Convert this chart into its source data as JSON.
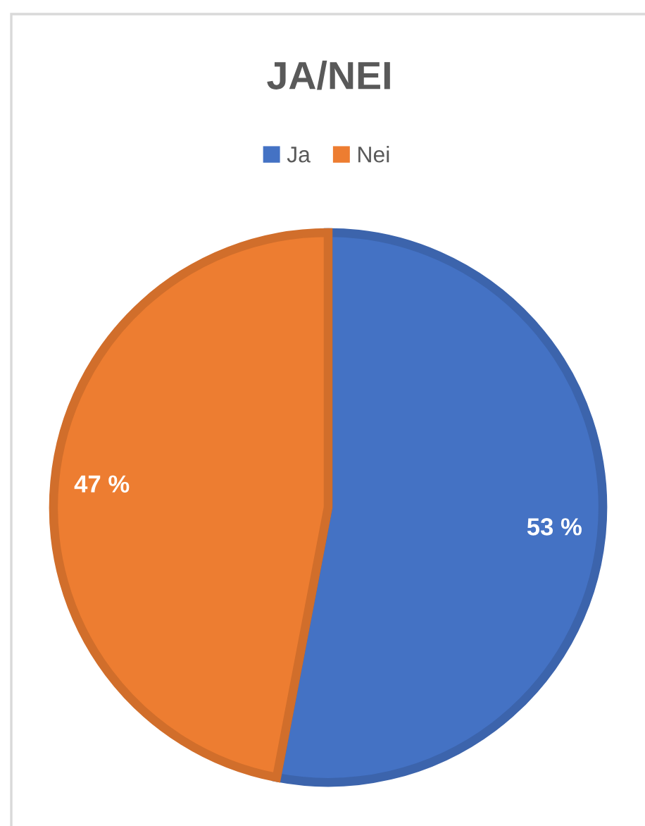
{
  "chart_data": {
    "type": "pie",
    "title": "JA/NEI",
    "categories": [
      "Ja",
      "Nei"
    ],
    "values": [
      53,
      47
    ],
    "colors": [
      "#4472c4",
      "#ed7d31"
    ],
    "value_labels": [
      "53 %",
      "47 %"
    ],
    "legend": "top"
  }
}
